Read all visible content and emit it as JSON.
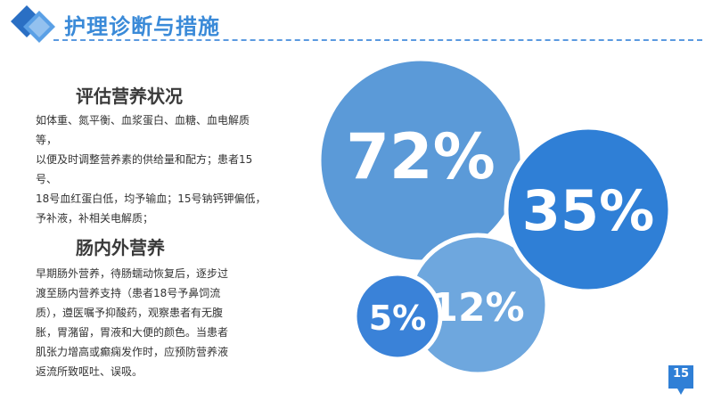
{
  "header": {
    "title": "护理诊断与措施"
  },
  "sections": [
    {
      "title": "评估营养状况",
      "lines": [
        "如体重、氮平衡、血浆蛋白、血糖、血电解质等，",
        "以便及时调整营养素的供给量和配方；患者15号、",
        "18号血红蛋白低，均予输血；15号钠钙钾偏低，",
        "予补液，补相关电解质；"
      ]
    },
    {
      "title": "肠内外营养",
      "lines": [
        "早期肠外营养，待肠蠕动恢复后，逐步过",
        "渡至肠内营养支持（患者18号予鼻饲流",
        "质），遵医嘱予抑酸药，观察患者有无腹",
        "胀，胃潴留，胃液和大便的颜色。当患者",
        "肌张力增高或癫痫发作时，应预防营养液",
        "返流所致呕吐、误吸。"
      ]
    }
  ],
  "bubbles": [
    {
      "label": "72%",
      "color": "#5b9ad8"
    },
    {
      "label": "35%",
      "color": "#2f7fd6"
    },
    {
      "label": "12%",
      "color": "#6ea7de"
    },
    {
      "label": "5%",
      "color": "#3a82d8"
    }
  ],
  "page_number": "15",
  "colors": {
    "accent": "#3a8ad8",
    "dark": "#2a6fc4"
  }
}
